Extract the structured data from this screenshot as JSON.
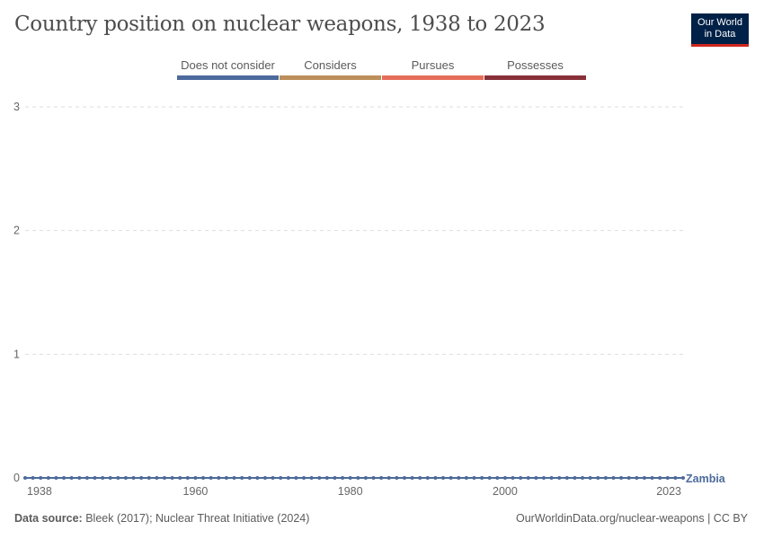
{
  "header": {
    "title": "Country position on nuclear weapons, 1938 to 2023",
    "logo": [
      "Our World",
      "in Data"
    ]
  },
  "legend": [
    {
      "label": "Does not consider",
      "color": "#4c6a9c"
    },
    {
      "label": "Considers",
      "color": "#bc8e5a"
    },
    {
      "label": "Pursues",
      "color": "#e56e5a"
    },
    {
      "label": "Possesses",
      "color": "#883039"
    }
  ],
  "chart_data": {
    "type": "line",
    "title": "Country position on nuclear weapons, 1938 to 2023",
    "xlim": [
      1938,
      2023
    ],
    "ylim": [
      0,
      3
    ],
    "xticks": [
      1938,
      1960,
      1980,
      2000,
      2023
    ],
    "yticks": [
      0,
      1,
      2,
      3
    ],
    "grid": "horizontal dashed",
    "legend_placement": "top",
    "series": [
      {
        "name": "Zambia",
        "color": "#4c6a9c",
        "x_start": 1938,
        "x_end": 2023,
        "value_all_years": 0
      }
    ]
  },
  "footer": {
    "source_label": "Data source:",
    "source": " Bleek (2017); Nuclear Threat Initiative (2024)",
    "url": "OurWorldinData.org/nuclear-weapons | CC BY"
  }
}
